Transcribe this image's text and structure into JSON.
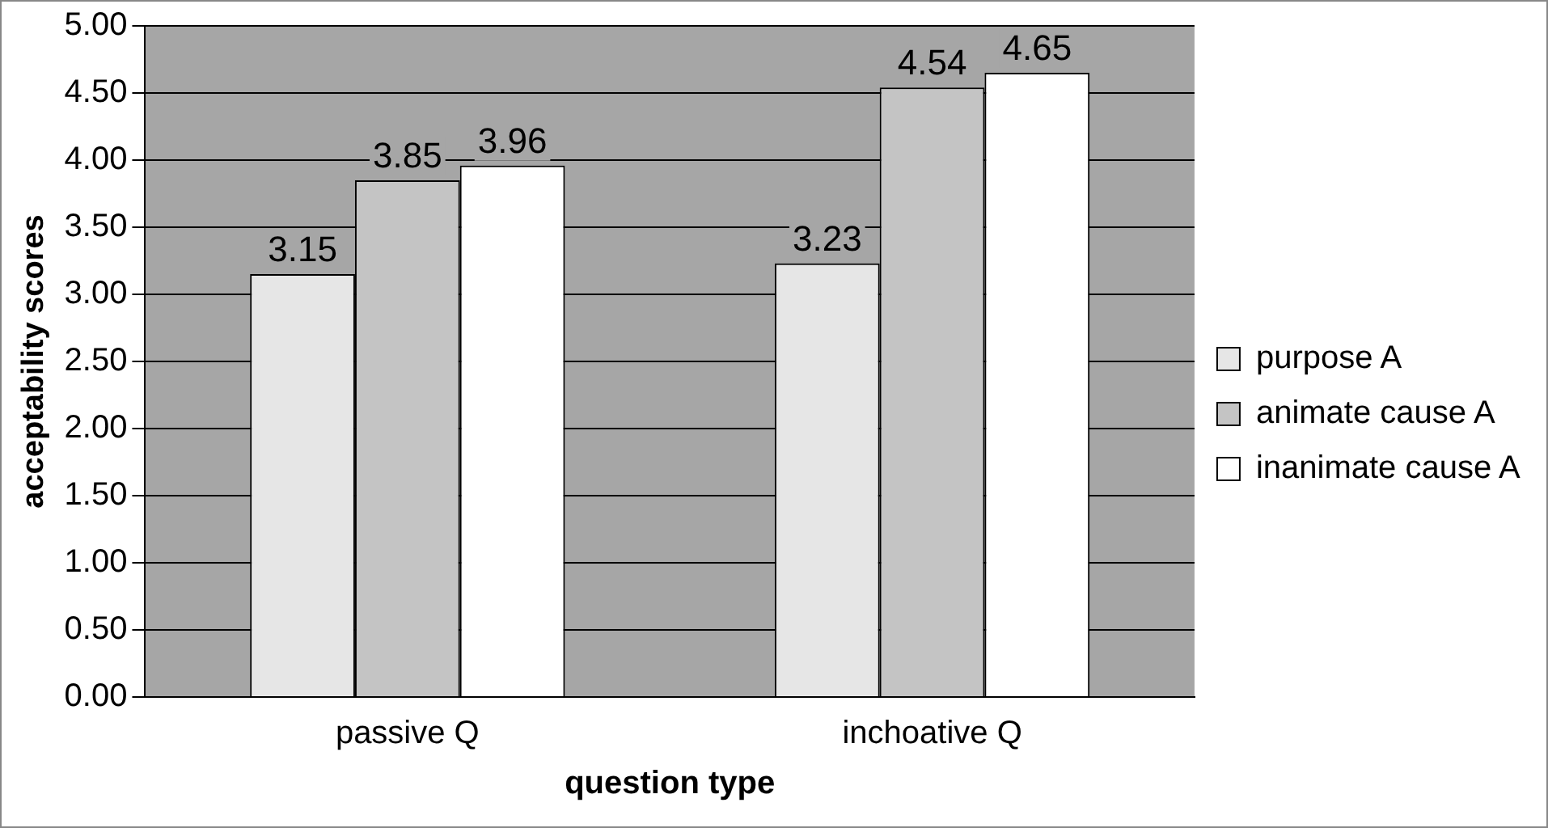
{
  "chart_data": {
    "type": "bar",
    "xlabel": "question type",
    "ylabel": "acceptability scores",
    "categories": [
      "passive Q",
      "inchoative Q"
    ],
    "series": [
      {
        "name": "purpose A",
        "color": "#e6e6e6",
        "values": [
          3.15,
          3.23
        ]
      },
      {
        "name": "animate cause A",
        "color": "#c4c4c4",
        "values": [
          3.85,
          4.54
        ]
      },
      {
        "name": "inanimate cause A",
        "color": "#ffffff",
        "values": [
          3.96,
          4.65
        ]
      }
    ],
    "ylim": [
      0,
      5
    ],
    "yticks": [
      {
        "value": 0,
        "label": "0.00"
      },
      {
        "value": 0.5,
        "label": "0.50"
      },
      {
        "value": 1,
        "label": "1.00"
      },
      {
        "value": 1.5,
        "label": "1.50"
      },
      {
        "value": 2,
        "label": "2.00"
      },
      {
        "value": 2.5,
        "label": "2.50"
      },
      {
        "value": 3,
        "label": "3.00"
      },
      {
        "value": 3.5,
        "label": "3.50"
      },
      {
        "value": 4,
        "label": "4.00"
      },
      {
        "value": 4.5,
        "label": "4.50"
      },
      {
        "value": 5,
        "label": "5.00"
      }
    ],
    "grid": "y",
    "legend": "right",
    "data_labels": true
  }
}
